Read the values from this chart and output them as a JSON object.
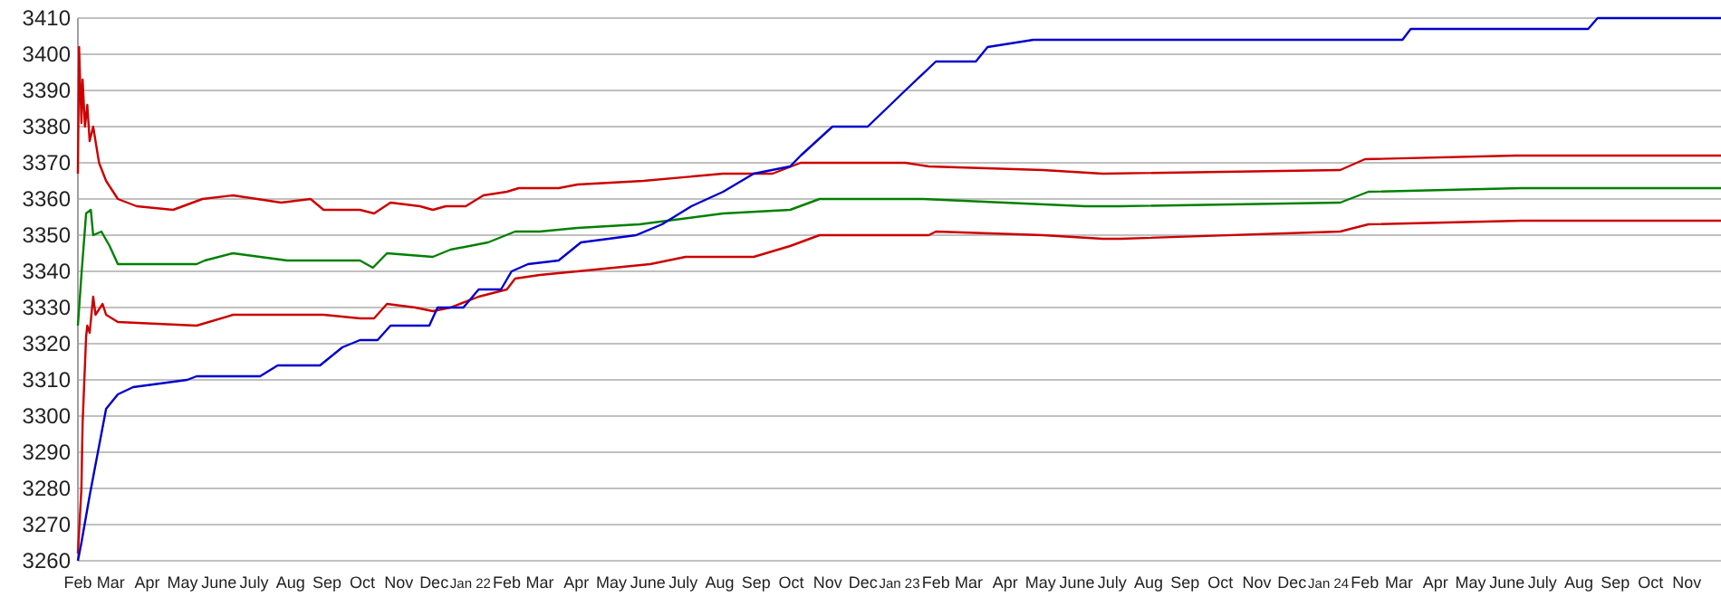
{
  "chart_data": {
    "type": "line",
    "grid": "y",
    "xlim": [
      "2021-02-01",
      "2024-11-30"
    ],
    "xticks": [
      {
        "value": "2021-02-01",
        "label": "Feb"
      },
      {
        "value": "2021-03-01",
        "label": "Mar"
      },
      {
        "value": "2021-04-01",
        "label": "Apr"
      },
      {
        "value": "2021-05-01",
        "label": "May"
      },
      {
        "value": "2021-06-01",
        "label": "June"
      },
      {
        "value": "2021-07-01",
        "label": "July"
      },
      {
        "value": "2021-08-01",
        "label": "Aug"
      },
      {
        "value": "2021-09-01",
        "label": "Sep"
      },
      {
        "value": "2021-10-01",
        "label": "Oct"
      },
      {
        "value": "2021-11-01",
        "label": "Nov"
      },
      {
        "value": "2021-12-01",
        "label": "Dec"
      },
      {
        "value": "2022-01-01",
        "label": "Jan 22"
      },
      {
        "value": "2022-02-01",
        "label": "Feb"
      },
      {
        "value": "2022-03-01",
        "label": "Mar"
      },
      {
        "value": "2022-04-01",
        "label": "Apr"
      },
      {
        "value": "2022-05-01",
        "label": "May"
      },
      {
        "value": "2022-06-01",
        "label": "June"
      },
      {
        "value": "2022-07-01",
        "label": "July"
      },
      {
        "value": "2022-08-01",
        "label": "Aug"
      },
      {
        "value": "2022-09-01",
        "label": "Sep"
      },
      {
        "value": "2022-10-01",
        "label": "Oct"
      },
      {
        "value": "2022-11-01",
        "label": "Nov"
      },
      {
        "value": "2022-12-01",
        "label": "Dec"
      },
      {
        "value": "2023-01-01",
        "label": "Jan 23"
      },
      {
        "value": "2023-02-01",
        "label": "Feb"
      },
      {
        "value": "2023-03-01",
        "label": "Mar"
      },
      {
        "value": "2023-04-01",
        "label": "Apr"
      },
      {
        "value": "2023-05-01",
        "label": "May"
      },
      {
        "value": "2023-06-01",
        "label": "June"
      },
      {
        "value": "2023-07-01",
        "label": "July"
      },
      {
        "value": "2023-08-01",
        "label": "Aug"
      },
      {
        "value": "2023-09-01",
        "label": "Sep"
      },
      {
        "value": "2023-10-01",
        "label": "Oct"
      },
      {
        "value": "2023-11-01",
        "label": "Nov"
      },
      {
        "value": "2023-12-01",
        "label": "Dec"
      },
      {
        "value": "2024-01-01",
        "label": "Jan 24"
      },
      {
        "value": "2024-02-01",
        "label": "Feb"
      },
      {
        "value": "2024-03-01",
        "label": "Mar"
      },
      {
        "value": "2024-04-01",
        "label": "Apr"
      },
      {
        "value": "2024-05-01",
        "label": "May"
      },
      {
        "value": "2024-06-01",
        "label": "June"
      },
      {
        "value": "2024-07-01",
        "label": "July"
      },
      {
        "value": "2024-08-01",
        "label": "Aug"
      },
      {
        "value": "2024-09-01",
        "label": "Sep"
      },
      {
        "value": "2024-10-01",
        "label": "Oct"
      },
      {
        "value": "2024-11-01",
        "label": "Nov"
      }
    ],
    "ylim": [
      3260,
      3410
    ],
    "yticks": [
      3260,
      3270,
      3280,
      3290,
      3300,
      3310,
      3320,
      3330,
      3340,
      3350,
      3360,
      3370,
      3380,
      3390,
      3400,
      3410
    ],
    "series": [
      {
        "color": "#cc0000",
        "x": [
          "2021-02-01",
          "2021-02-02",
          "2021-02-04",
          "2021-02-05",
          "2021-02-07",
          "2021-02-09",
          "2021-02-11",
          "2021-02-14",
          "2021-02-19",
          "2021-02-25",
          "2021-03-07",
          "2021-03-23",
          "2021-04-23",
          "2021-05-18",
          "2021-06-13",
          "2021-07-24",
          "2021-08-18",
          "2021-08-29",
          "2021-09-29",
          "2021-10-11",
          "2021-10-25",
          "2021-11-19",
          "2021-11-30",
          "2021-12-11",
          "2021-12-28",
          "2022-01-12",
          "2022-02-01",
          "2022-02-11",
          "2022-03-17",
          "2022-04-02",
          "2022-05-28",
          "2022-08-04",
          "2022-09-15",
          "2022-10-09",
          "2023-01-06",
          "2023-01-26",
          "2023-05-03",
          "2023-06-23",
          "2024-01-11",
          "2024-02-01",
          "2024-06-08",
          "2024-11-30"
        ],
        "values": [
          3367,
          3402,
          3381,
          3393,
          3380,
          3386,
          3376,
          3380,
          3370,
          3365,
          3360,
          3358,
          3357,
          3360,
          3361,
          3359,
          3360,
          3357,
          3357,
          3356,
          3359,
          3358,
          3357,
          3358,
          3358,
          3361,
          3362,
          3363,
          3363,
          3364,
          3365,
          3367,
          3367,
          3370,
          3370,
          3369,
          3368,
          3367,
          3368,
          3371,
          3372,
          3372
        ]
      },
      {
        "color": "#008000",
        "x": [
          "2021-02-01",
          "2021-02-04",
          "2021-02-08",
          "2021-02-12",
          "2021-02-14",
          "2021-02-21",
          "2021-02-28",
          "2021-03-07",
          "2021-05-13",
          "2021-05-20",
          "2021-06-13",
          "2021-07-29",
          "2021-09-29",
          "2021-10-10",
          "2021-10-22",
          "2021-11-30",
          "2021-12-15",
          "2022-01-16",
          "2022-02-08",
          "2022-03-01",
          "2022-04-02",
          "2022-05-25",
          "2022-08-04",
          "2022-09-30",
          "2022-10-25",
          "2023-01-06",
          "2023-01-21",
          "2023-06-08",
          "2023-07-08",
          "2024-01-11",
          "2024-02-04",
          "2024-06-13",
          "2024-11-30"
        ],
        "values": [
          3325,
          3339,
          3356,
          3357,
          3350,
          3351,
          3347,
          3342,
          3342,
          3343,
          3345,
          3343,
          3343,
          3341,
          3345,
          3344,
          3346,
          3348,
          3351,
          3351,
          3352,
          3353,
          3356,
          3357,
          3360,
          3360,
          3360,
          3358,
          3358,
          3359,
          3362,
          3363,
          3363
        ]
      },
      {
        "color": "#cc0000",
        "x": [
          "2021-02-01",
          "2021-02-04",
          "2021-02-05",
          "2021-02-08",
          "2021-02-09",
          "2021-02-11",
          "2021-02-14",
          "2021-02-16",
          "2021-02-22",
          "2021-02-25",
          "2021-03-07",
          "2021-05-13",
          "2021-06-13",
          "2021-08-29",
          "2021-09-29",
          "2021-10-11",
          "2021-10-22",
          "2021-11-15",
          "2021-11-30",
          "2021-12-15",
          "2022-01-08",
          "2022-02-01",
          "2022-02-08",
          "2022-03-01",
          "2022-04-02",
          "2022-06-03",
          "2022-07-03",
          "2022-08-30",
          "2022-09-30",
          "2022-10-25",
          "2023-01-26",
          "2023-02-01",
          "2023-05-03",
          "2023-06-23",
          "2023-07-08",
          "2024-01-11",
          "2024-02-04",
          "2024-06-13",
          "2024-11-30"
        ],
        "values": [
          3262,
          3280,
          3298,
          3322,
          3325,
          3323,
          3333,
          3328,
          3331,
          3328,
          3326,
          3325,
          3328,
          3328,
          3327,
          3327,
          3331,
          3330,
          3329,
          3330,
          3333,
          3335,
          3338,
          3339,
          3340,
          3342,
          3344,
          3344,
          3347,
          3350,
          3350,
          3351,
          3350,
          3349,
          3349,
          3351,
          3353,
          3354,
          3354
        ]
      },
      {
        "color": "#0000cc",
        "x": [
          "2021-02-01",
          "2021-02-04",
          "2021-02-11",
          "2021-02-18",
          "2021-02-25",
          "2021-03-07",
          "2021-03-20",
          "2021-05-05",
          "2021-05-13",
          "2021-07-06",
          "2021-07-21",
          "2021-08-26",
          "2021-09-14",
          "2021-09-29",
          "2021-10-14",
          "2021-10-25",
          "2021-11-27",
          "2021-12-04",
          "2021-12-26",
          "2022-01-08",
          "2022-01-27",
          "2022-02-05",
          "2022-02-19",
          "2022-03-17",
          "2022-04-05",
          "2022-05-22",
          "2022-06-13",
          "2022-07-08",
          "2022-08-04",
          "2022-08-30",
          "2022-09-30",
          "2022-10-09",
          "2022-11-05",
          "2022-12-05",
          "2023-01-06",
          "2023-02-01",
          "2023-03-07",
          "2023-03-17",
          "2023-04-25",
          "2024-03-04",
          "2024-03-11",
          "2024-08-09",
          "2024-08-17",
          "2024-11-30"
        ],
        "values": [
          3260,
          3265,
          3278,
          3290,
          3302,
          3306,
          3308,
          3310,
          3311,
          3311,
          3314,
          3314,
          3319,
          3321,
          3321,
          3325,
          3325,
          3330,
          3330,
          3335,
          3335,
          3340,
          3342,
          3343,
          3348,
          3350,
          3353,
          3358,
          3362,
          3367,
          3369,
          3372,
          3380,
          3380,
          3390,
          3398,
          3398,
          3402,
          3404,
          3404,
          3407,
          3407,
          3410,
          3410
        ]
      }
    ]
  }
}
